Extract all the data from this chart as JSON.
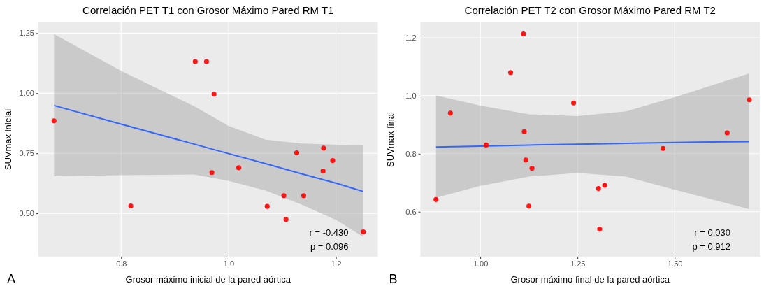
{
  "chart_data": [
    {
      "type": "scatter",
      "title": "Correlación PET T1 con Grosor Máximo Pared RM T1",
      "xlabel": "Grosor máximo inicial de la pared aórtica",
      "ylabel": "SUVmax inicial",
      "xlim": [
        0.646,
        1.278
      ],
      "ylim": [
        0.32,
        1.295
      ],
      "xticks": [
        {
          "value": 0.8,
          "label": "0.8"
        },
        {
          "value": 1.0,
          "label": "1.0"
        },
        {
          "value": 1.2,
          "label": "1.2"
        }
      ],
      "yticks": [
        {
          "value": 0.5,
          "label": "0.50"
        },
        {
          "value": 0.75,
          "label": "0.75"
        },
        {
          "value": 1.0,
          "label": "1.00"
        },
        {
          "value": 1.25,
          "label": "1.25"
        }
      ],
      "grid": true,
      "annotations": [
        "r = -0.430",
        "p = 0.096",
        "A"
      ],
      "series": [
        {
          "color": "#ff0000",
          "marker": "circle",
          "x": [
            0.675,
            0.818,
            0.938,
            0.959,
            0.973,
            0.969,
            1.019,
            1.072,
            1.103,
            1.107,
            1.127,
            1.14,
            1.177,
            1.176,
            1.194,
            1.251
          ],
          "values": [
            0.885,
            0.531,
            1.132,
            1.132,
            0.996,
            0.67,
            0.69,
            0.529,
            0.574,
            0.475,
            0.752,
            0.574,
            0.772,
            0.676,
            0.72,
            0.423
          ]
        },
        {
          "type": "line",
          "color": "#3366ff",
          "marker": "none",
          "x": [
            0.675,
            0.801,
            0.935,
            1.0,
            1.069,
            1.136,
            1.203,
            1.251
          ],
          "values": [
            0.949,
            0.871,
            0.789,
            0.749,
            0.707,
            0.665,
            0.624,
            0.591
          ],
          "lower": [
            0.655,
            0.659,
            0.662,
            0.636,
            0.595,
            0.537,
            0.47,
            0.402
          ],
          "upper": [
            1.246,
            1.092,
            0.947,
            0.864,
            0.807,
            0.791,
            0.786,
            0.783
          ]
        }
      ]
    },
    {
      "type": "scatter",
      "title": "Correlación PET T2 con Grosor Máximo Pared RM T2",
      "xlabel": "Grosor máximo final de la pared aórtica",
      "ylabel": "SUVmax final",
      "xlim": [
        0.846,
        1.719
      ],
      "ylim": [
        0.445,
        1.253
      ],
      "xticks": [
        {
          "value": 1.0,
          "label": "1.00"
        },
        {
          "value": 1.25,
          "label": "1.25"
        },
        {
          "value": 1.5,
          "label": "1.50"
        }
      ],
      "yticks": [
        {
          "value": 0.6,
          "label": "0.6"
        },
        {
          "value": 0.8,
          "label": "0.8"
        },
        {
          "value": 1.0,
          "label": "1.0"
        },
        {
          "value": 1.2,
          "label": "1.2"
        }
      ],
      "grid": true,
      "annotations": [
        "r = 0.030",
        "p = 0.912",
        "B"
      ],
      "series": [
        {
          "color": "#ff0000",
          "marker": "circle",
          "x": [
            0.886,
            0.923,
            1.015,
            1.078,
            1.111,
            1.113,
            1.117,
            1.125,
            1.133,
            1.24,
            1.304,
            1.32,
            1.307,
            1.47,
            1.635,
            1.692
          ],
          "values": [
            0.642,
            0.94,
            0.83,
            1.08,
            1.213,
            0.876,
            0.778,
            0.619,
            0.75,
            0.975,
            0.68,
            0.691,
            0.54,
            0.818,
            0.872,
            0.986
          ]
        },
        {
          "type": "line",
          "color": "#3366ff",
          "marker": "none",
          "x": [
            0.886,
            1.0,
            1.125,
            1.25,
            1.375,
            1.5,
            1.692
          ],
          "values": [
            0.823,
            0.826,
            0.83,
            0.833,
            0.836,
            0.839,
            0.842
          ],
          "lower": [
            0.648,
            0.689,
            0.721,
            0.734,
            0.721,
            0.676,
            0.609
          ],
          "upper": [
            1.001,
            0.966,
            0.936,
            0.93,
            0.946,
            0.995,
            1.077
          ]
        }
      ]
    }
  ]
}
